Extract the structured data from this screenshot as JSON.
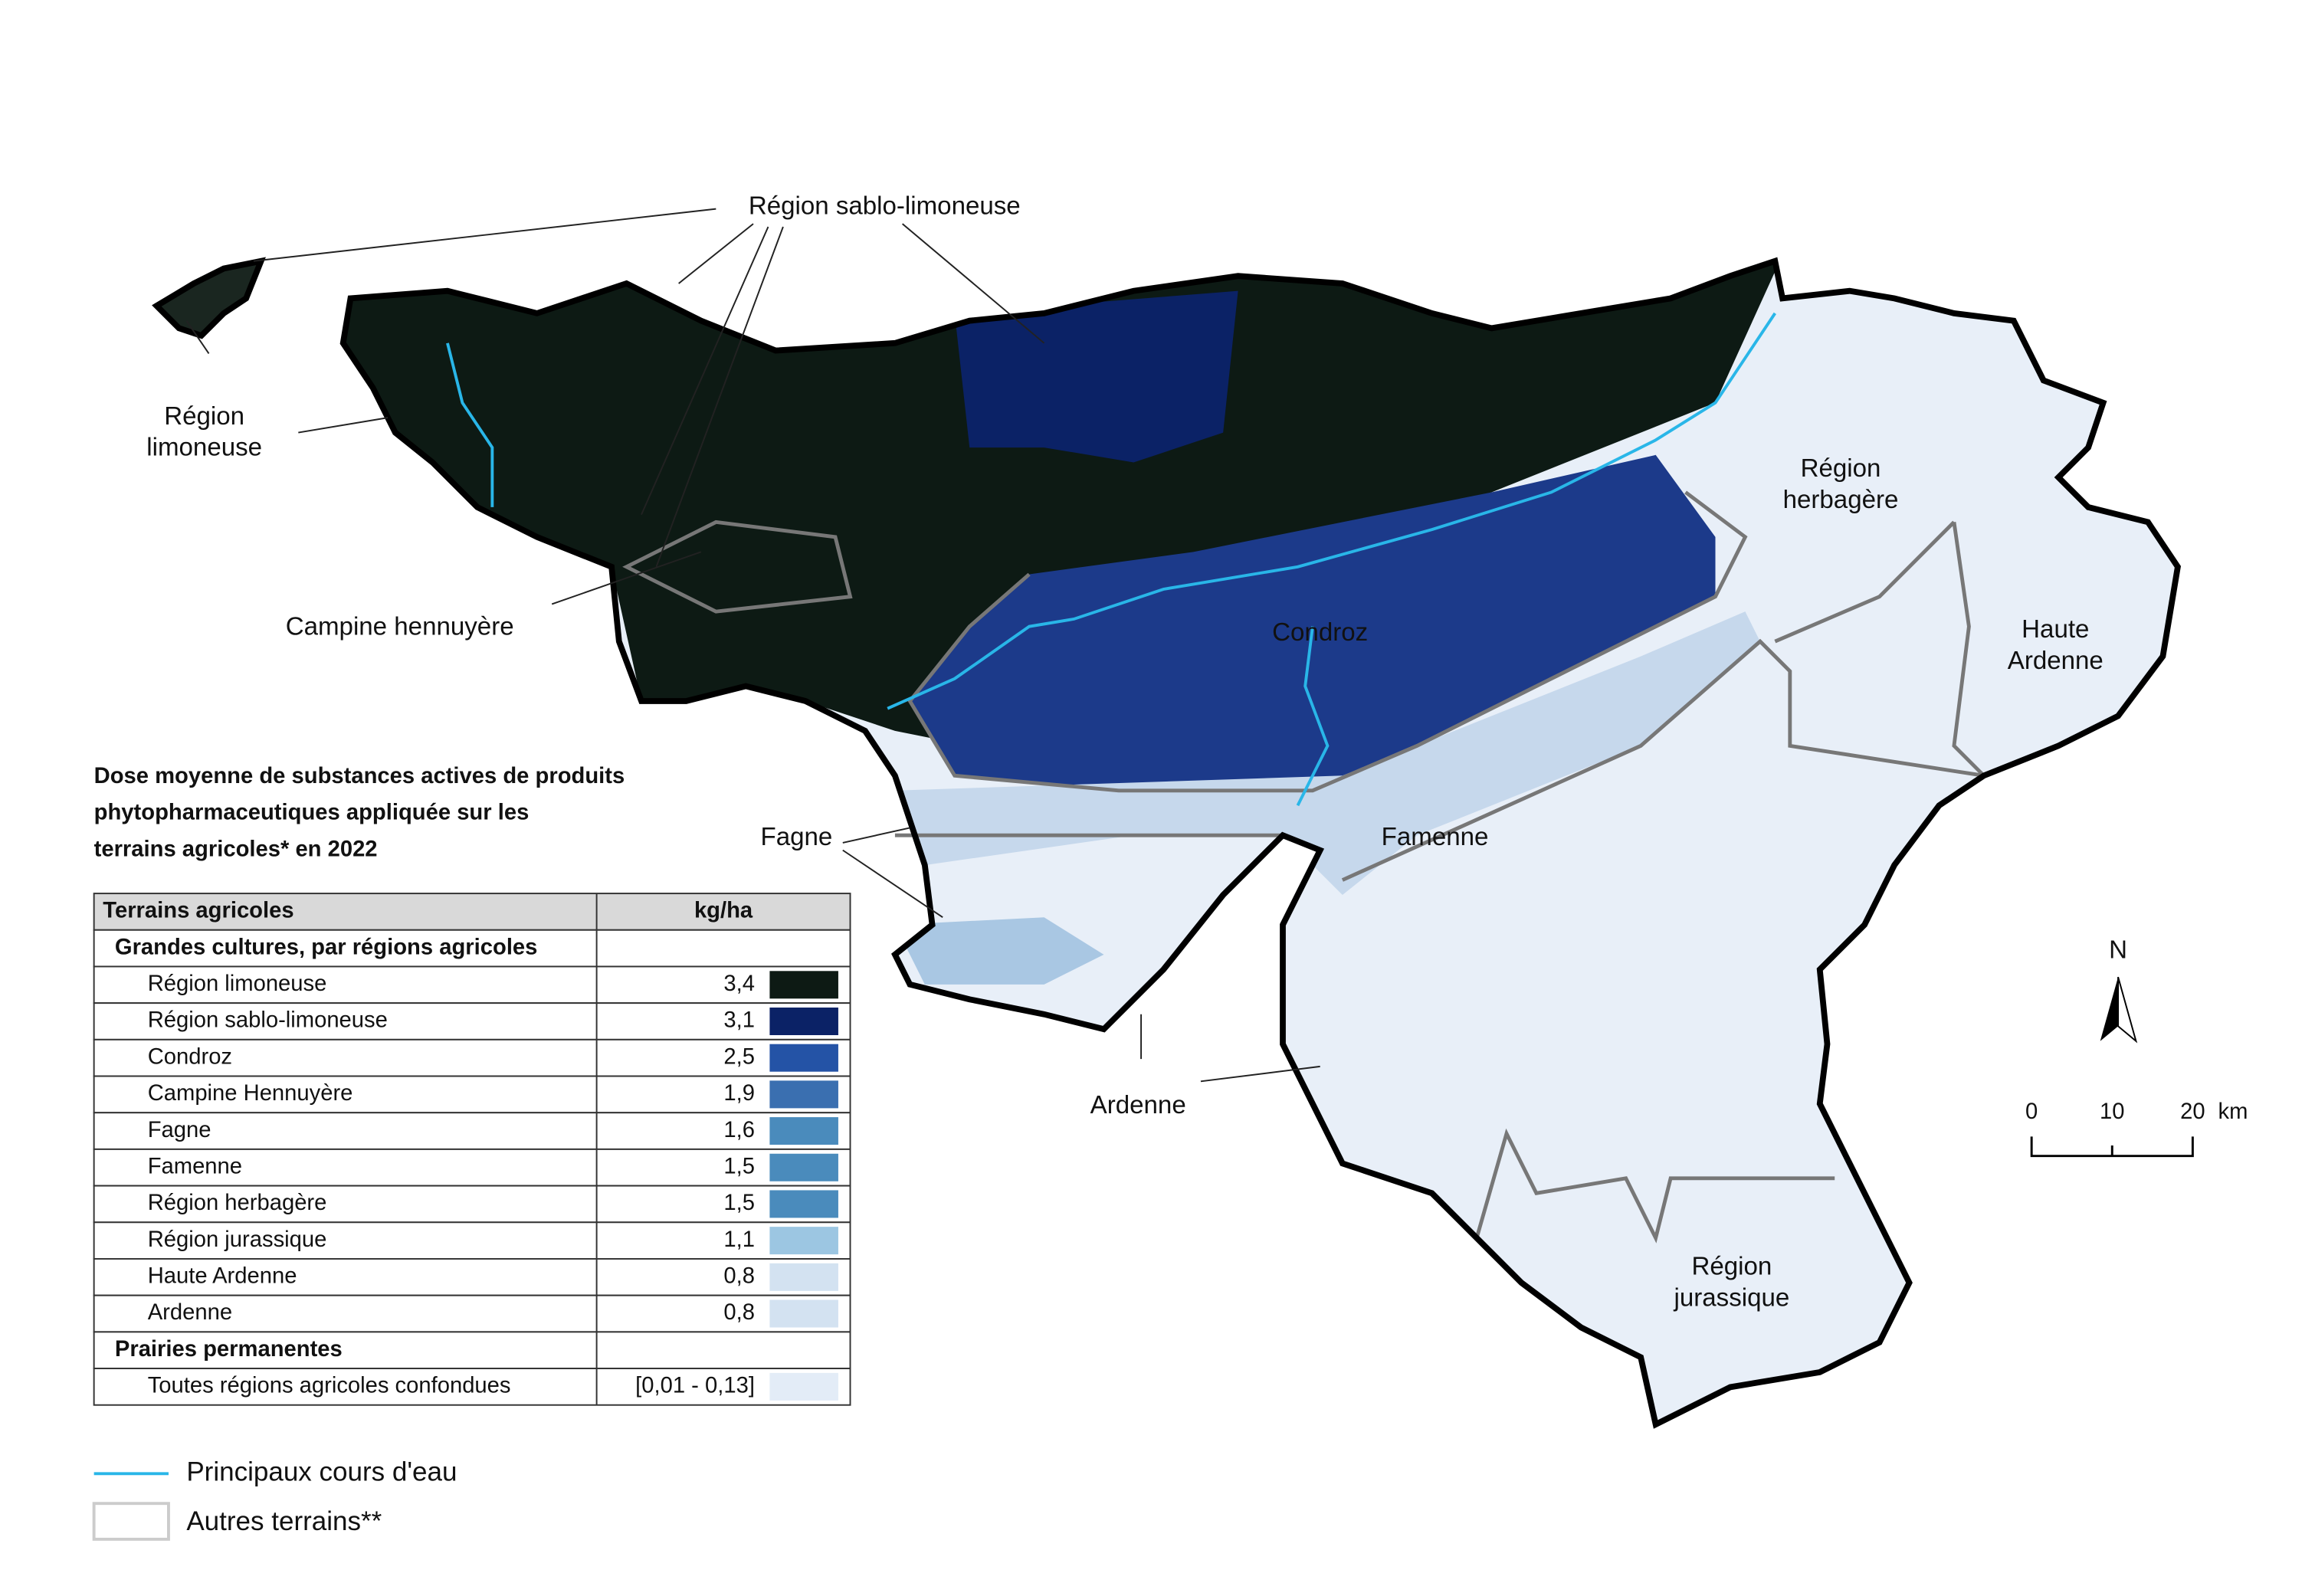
{
  "map": {
    "labels": [
      {
        "lines": [
          "Région sablo-limoneuse"
        ]
      },
      {
        "lines": [
          "Région",
          "limoneuse"
        ]
      },
      {
        "lines": [
          "Campine hennuyère"
        ]
      },
      {
        "lines": [
          "Condroz"
        ]
      },
      {
        "lines": [
          "Région",
          "herbagère"
        ]
      },
      {
        "lines": [
          "Haute",
          "Ardenne"
        ]
      },
      {
        "lines": [
          "Famenne"
        ]
      },
      {
        "lines": [
          "Fagne"
        ]
      },
      {
        "lines": [
          "Ardenne"
        ]
      },
      {
        "lines": [
          "Région",
          "jurassique"
        ]
      }
    ],
    "north": "N",
    "scale_bar": {
      "ticks": [
        "0",
        "10",
        "20"
      ],
      "unit": "km"
    }
  },
  "legend": {
    "title": [
      "Dose moyenne de substances actives de produits",
      "phytopharmaceutiques appliquée sur les",
      "terrains agricoles* en 2022"
    ],
    "header": [
      "Terrains agricoles",
      "kg/ha"
    ],
    "groups": [
      {
        "title": "Grandes cultures, par régions agricoles",
        "rows": [
          {
            "label": "Région limoneuse",
            "value": "3,4",
            "color": "#0d1a14"
          },
          {
            "label": "Région sablo-limoneuse",
            "value": "3,1",
            "color": "#0b2266"
          },
          {
            "label": "Condroz",
            "value": "2,5",
            "color": "#2453a6"
          },
          {
            "label": "Campine Hennuyère",
            "value": "1,9",
            "color": "#3a6fb0"
          },
          {
            "label": "Fagne",
            "value": "1,6",
            "color": "#4a8bbc"
          },
          {
            "label": "Famenne",
            "value": "1,5",
            "color": "#4a8bbc"
          },
          {
            "label": "Région herbagère",
            "value": "1,5",
            "color": "#4a8bbc"
          },
          {
            "label": "Région jurassique",
            "value": "1,1",
            "color": "#9cc6e2"
          },
          {
            "label": "Haute Ardenne",
            "value": "0,8",
            "color": "#d3e2f1"
          },
          {
            "label": "Ardenne",
            "value": "0,8",
            "color": "#d3e2f1"
          }
        ]
      },
      {
        "title": "Prairies permanentes",
        "rows": [
          {
            "label": "Toutes régions agricoles confondues",
            "value": "[0,01 - 0,13]",
            "color": "#e3ecf7"
          }
        ]
      }
    ],
    "river": {
      "label": "Principaux cours d'eau",
      "color": "#29b6e8"
    },
    "other": {
      "label": "Autres terrains**"
    }
  }
}
